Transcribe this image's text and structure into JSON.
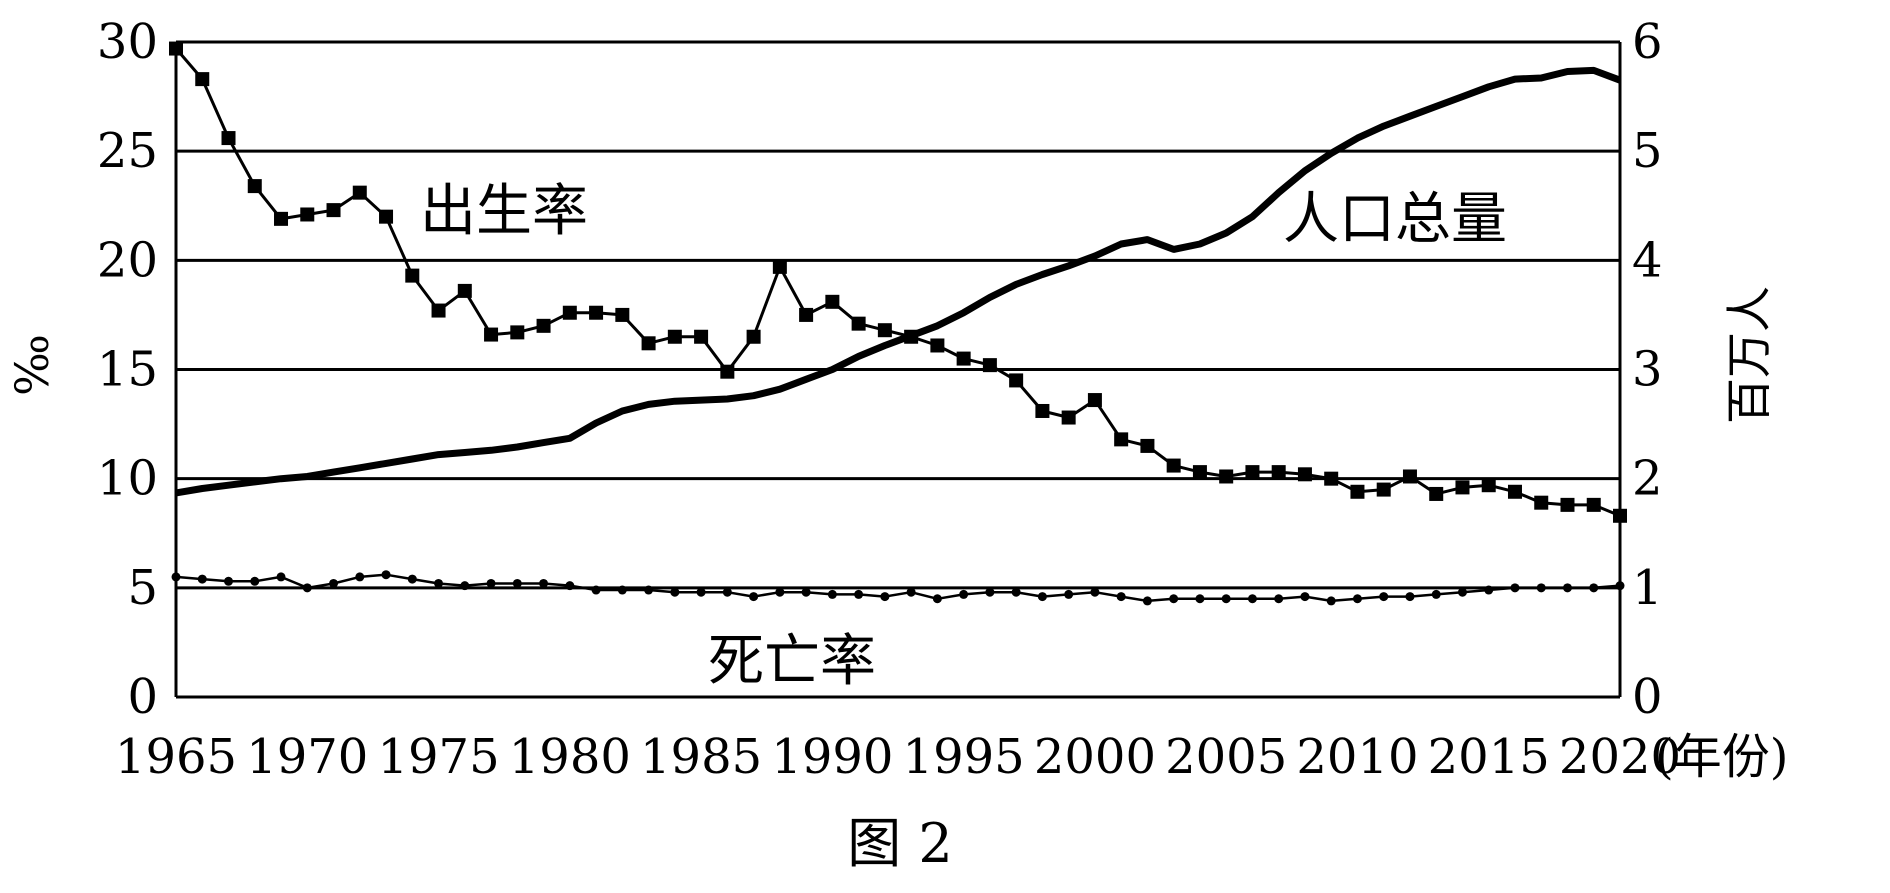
{
  "chart_data": {
    "type": "line",
    "caption": "图 2",
    "x_unit_label": "(年份)",
    "x_ticks": [
      1965,
      1970,
      1975,
      1980,
      1985,
      1990,
      1995,
      2000,
      2005,
      2010,
      2015,
      2020
    ],
    "xlim": [
      1965,
      2020
    ],
    "left_axis": {
      "label": "‰",
      "ylim": [
        0,
        30
      ],
      "ticks": [
        0,
        5,
        10,
        15,
        20,
        25,
        30
      ]
    },
    "right_axis": {
      "label": "百万人",
      "ylim": [
        0,
        6
      ],
      "ticks": [
        0,
        1,
        2,
        3,
        4,
        5,
        6
      ]
    },
    "grid": "horizontal",
    "series": [
      {
        "name": "出生率",
        "axis": "left",
        "marker": "square",
        "x": [
          1965,
          1966,
          1967,
          1968,
          1969,
          1970,
          1971,
          1972,
          1973,
          1974,
          1975,
          1976,
          1977,
          1978,
          1979,
          1980,
          1981,
          1982,
          1983,
          1984,
          1985,
          1986,
          1987,
          1988,
          1989,
          1990,
          1991,
          1992,
          1993,
          1994,
          1995,
          1996,
          1997,
          1998,
          1999,
          2000,
          2001,
          2002,
          2003,
          2004,
          2005,
          2006,
          2007,
          2008,
          2009,
          2010,
          2011,
          2012,
          2013,
          2014,
          2015,
          2016,
          2017,
          2018,
          2019,
          2020
        ],
        "values": [
          29.7,
          28.3,
          25.6,
          23.4,
          21.9,
          22.1,
          22.3,
          23.1,
          22.0,
          19.3,
          17.7,
          18.6,
          16.6,
          16.7,
          17.0,
          17.6,
          17.6,
          17.5,
          16.2,
          16.5,
          16.5,
          14.9,
          16.5,
          19.7,
          17.5,
          18.1,
          17.1,
          16.8,
          16.5,
          16.1,
          15.5,
          15.2,
          14.5,
          13.1,
          12.8,
          13.6,
          11.8,
          11.5,
          10.6,
          10.3,
          10.1,
          10.3,
          10.3,
          10.2,
          10.0,
          9.4,
          9.5,
          10.1,
          9.3,
          9.6,
          9.7,
          9.4,
          8.9,
          8.8,
          8.8,
          8.3
        ]
      },
      {
        "name": "死亡率",
        "axis": "left",
        "marker": "dot",
        "x": [
          1965,
          1966,
          1967,
          1968,
          1969,
          1970,
          1971,
          1972,
          1973,
          1974,
          1975,
          1976,
          1977,
          1978,
          1979,
          1980,
          1981,
          1982,
          1983,
          1984,
          1985,
          1986,
          1987,
          1988,
          1989,
          1990,
          1991,
          1992,
          1993,
          1994,
          1995,
          1996,
          1997,
          1998,
          1999,
          2000,
          2001,
          2002,
          2003,
          2004,
          2005,
          2006,
          2007,
          2008,
          2009,
          2010,
          2011,
          2012,
          2013,
          2014,
          2015,
          2016,
          2017,
          2018,
          2019,
          2020
        ],
        "values": [
          5.5,
          5.4,
          5.3,
          5.3,
          5.5,
          5.0,
          5.2,
          5.5,
          5.6,
          5.4,
          5.2,
          5.1,
          5.2,
          5.2,
          5.2,
          5.1,
          4.9,
          4.9,
          4.9,
          4.8,
          4.8,
          4.8,
          4.6,
          4.8,
          4.8,
          4.7,
          4.7,
          4.6,
          4.8,
          4.5,
          4.7,
          4.8,
          4.8,
          4.6,
          4.7,
          4.8,
          4.6,
          4.4,
          4.5,
          4.5,
          4.5,
          4.5,
          4.5,
          4.6,
          4.4,
          4.5,
          4.6,
          4.6,
          4.7,
          4.8,
          4.9,
          5.0,
          5.0,
          5.0,
          5.0,
          5.1
        ]
      },
      {
        "name": "人口总量",
        "axis": "right",
        "marker": "none",
        "x": [
          1965,
          1966,
          1967,
          1968,
          1969,
          1970,
          1971,
          1972,
          1973,
          1974,
          1975,
          1976,
          1977,
          1978,
          1979,
          1980,
          1981,
          1982,
          1983,
          1984,
          1985,
          1986,
          1987,
          1988,
          1989,
          1990,
          1991,
          1992,
          1993,
          1994,
          1995,
          1996,
          1997,
          1998,
          1999,
          2000,
          2001,
          2002,
          2003,
          2004,
          2005,
          2006,
          2007,
          2008,
          2009,
          2010,
          2011,
          2012,
          2013,
          2014,
          2015,
          2016,
          2017,
          2018,
          2019,
          2020
        ],
        "values": [
          1.87,
          1.91,
          1.94,
          1.97,
          2.0,
          2.02,
          2.06,
          2.1,
          2.14,
          2.18,
          2.22,
          2.24,
          2.26,
          2.29,
          2.33,
          2.37,
          2.51,
          2.62,
          2.68,
          2.71,
          2.72,
          2.73,
          2.76,
          2.82,
          2.91,
          3.0,
          3.12,
          3.22,
          3.31,
          3.4,
          3.52,
          3.66,
          3.78,
          3.87,
          3.95,
          4.04,
          4.15,
          4.19,
          4.1,
          4.15,
          4.25,
          4.4,
          4.62,
          4.82,
          4.98,
          5.12,
          5.23,
          5.32,
          5.41,
          5.5,
          5.59,
          5.66,
          5.67,
          5.73,
          5.74,
          5.65
        ]
      }
    ]
  }
}
